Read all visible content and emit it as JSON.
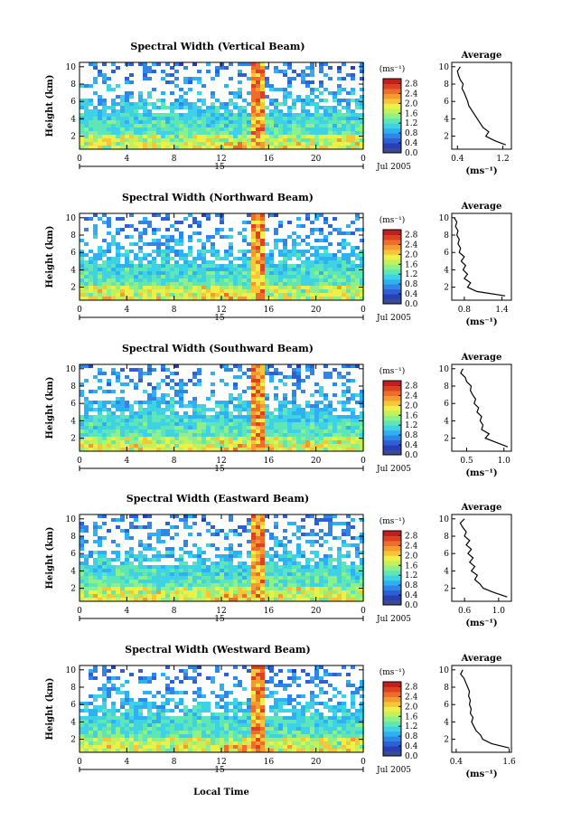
{
  "x_axis_label": "Local Time",
  "chart_data": [
    {
      "type": "heatmap",
      "title": "Spectral Width (Vertical Beam)",
      "ylabel": "Height (km)",
      "y_ticks": [
        "2",
        "4",
        "6",
        "8",
        "10"
      ],
      "ylim": [
        0.5,
        10.5
      ],
      "x_ticks": [
        "0",
        "4",
        "8",
        "12",
        "16",
        "20",
        "0"
      ],
      "xlim": [
        0,
        24
      ],
      "date_tick": "15",
      "date_label": "Jul 2005",
      "colorbar": {
        "unit": "(ms⁻¹)",
        "ticks": [
          "2.8",
          "2.4",
          "2.0",
          "1.6",
          "1.2",
          "0.8",
          "0.4",
          "0.0"
        ],
        "range": [
          0,
          3.0
        ],
        "colors": [
          "#3b4a96",
          "#2a3eb6",
          "#2f5fd4",
          "#2f86e6",
          "#2fb0f0",
          "#3fd2e4",
          "#5ee6b6",
          "#8ef08a",
          "#c4f05a",
          "#eef04a",
          "#f6c63a",
          "#f39a30",
          "#ec6e2a",
          "#dc4124",
          "#c11f1f"
        ]
      },
      "profile": {
        "title": "Average",
        "xlabel": "(ms⁻¹)",
        "x_ticks": [
          "0.4",
          "1.2"
        ],
        "xlim": [
          0.3,
          1.35
        ],
        "heights": [
          1.0,
          1.5,
          2.0,
          2.5,
          3.0,
          3.5,
          4.0,
          4.5,
          5.0,
          5.5,
          6.0,
          6.5,
          7.0,
          7.5,
          8.0,
          8.5,
          9.0,
          9.5,
          10.0
        ],
        "values": [
          1.25,
          1.05,
          0.9,
          0.95,
          0.85,
          0.8,
          0.75,
          0.7,
          0.65,
          0.6,
          0.58,
          0.55,
          0.52,
          0.48,
          0.5,
          0.45,
          0.42,
          0.4,
          0.45
        ]
      }
    },
    {
      "type": "heatmap",
      "title": "Spectral Width (Northward Beam)",
      "ylabel": "Height (km)",
      "y_ticks": [
        "2",
        "4",
        "6",
        "8",
        "10"
      ],
      "ylim": [
        0.5,
        10.5
      ],
      "x_ticks": [
        "0",
        "4",
        "8",
        "12",
        "16",
        "20",
        "0"
      ],
      "xlim": [
        0,
        24
      ],
      "date_tick": "15",
      "date_label": "Jul 2005",
      "colorbar": {
        "unit": "(ms⁻¹)",
        "ticks": [
          "2.8",
          "2.4",
          "2.0",
          "1.6",
          "1.2",
          "0.8",
          "0.4",
          "0.0"
        ],
        "range": [
          0,
          3.0
        ],
        "colors": [
          "#3b4a96",
          "#2a3eb6",
          "#2f5fd4",
          "#2f86e6",
          "#2fb0f0",
          "#3fd2e4",
          "#5ee6b6",
          "#8ef08a",
          "#c4f05a",
          "#eef04a",
          "#f6c63a",
          "#f39a30",
          "#ec6e2a",
          "#dc4124",
          "#c11f1f"
        ]
      },
      "profile": {
        "title": "Average",
        "xlabel": "(ms⁻¹)",
        "x_ticks": [
          "0.8",
          "1.4"
        ],
        "xlim": [
          0.6,
          1.55
        ],
        "heights": [
          1.0,
          1.5,
          2.0,
          2.5,
          3.0,
          3.5,
          4.0,
          4.5,
          5.0,
          5.5,
          6.0,
          6.5,
          7.0,
          7.5,
          8.0,
          8.5,
          9.0,
          9.5,
          10.0
        ],
        "values": [
          1.45,
          1.0,
          0.85,
          0.9,
          0.8,
          0.85,
          0.78,
          0.82,
          0.75,
          0.8,
          0.72,
          0.74,
          0.7,
          0.72,
          0.68,
          0.7,
          0.66,
          0.68,
          0.64
        ]
      }
    },
    {
      "type": "heatmap",
      "title": "Spectral Width (Southward Beam)",
      "ylabel": "Height (km)",
      "y_ticks": [
        "2",
        "4",
        "6",
        "8",
        "10"
      ],
      "ylim": [
        0.5,
        10.5
      ],
      "x_ticks": [
        "0",
        "4",
        "8",
        "12",
        "16",
        "20",
        "0"
      ],
      "xlim": [
        0,
        24
      ],
      "date_tick": "15",
      "date_label": "Jul 2005",
      "colorbar": {
        "unit": "(ms⁻¹)",
        "ticks": [
          "2.8",
          "2.4",
          "2.0",
          "1.6",
          "1.2",
          "0.8",
          "0.4",
          "0.0"
        ],
        "range": [
          0,
          3.0
        ],
        "colors": [
          "#3b4a96",
          "#2a3eb6",
          "#2f5fd4",
          "#2f86e6",
          "#2fb0f0",
          "#3fd2e4",
          "#5ee6b6",
          "#8ef08a",
          "#c4f05a",
          "#eef04a",
          "#f6c63a",
          "#f39a30",
          "#ec6e2a",
          "#dc4124",
          "#c11f1f"
        ]
      },
      "profile": {
        "title": "Average",
        "xlabel": "(ms⁻¹)",
        "x_ticks": [
          "0.5",
          "1.0"
        ],
        "xlim": [
          0.3,
          1.1
        ],
        "heights": [
          1.0,
          1.5,
          2.0,
          2.5,
          3.0,
          3.5,
          4.0,
          4.5,
          5.0,
          5.5,
          6.0,
          6.5,
          7.0,
          7.5,
          8.0,
          8.5,
          9.0,
          9.5,
          10.0
        ],
        "values": [
          1.05,
          0.9,
          0.75,
          0.8,
          0.7,
          0.72,
          0.68,
          0.7,
          0.64,
          0.66,
          0.6,
          0.62,
          0.58,
          0.55,
          0.56,
          0.5,
          0.48,
          0.42,
          0.45
        ]
      }
    },
    {
      "type": "heatmap",
      "title": "Spectral Width (Eastward Beam)",
      "ylabel": "Height (km)",
      "y_ticks": [
        "2",
        "4",
        "6",
        "8",
        "10"
      ],
      "ylim": [
        0.5,
        10.5
      ],
      "x_ticks": [
        "0",
        "4",
        "8",
        "12",
        "16",
        "20",
        "0"
      ],
      "xlim": [
        0,
        24
      ],
      "date_tick": "15",
      "date_label": "Jul 2005",
      "colorbar": {
        "unit": "(ms⁻¹)",
        "ticks": [
          "2.8",
          "2.4",
          "2.0",
          "1.6",
          "1.2",
          "0.8",
          "0.4",
          "0.0"
        ],
        "range": [
          0,
          3.0
        ],
        "colors": [
          "#3b4a96",
          "#2a3eb6",
          "#2f5fd4",
          "#2f86e6",
          "#2fb0f0",
          "#3fd2e4",
          "#5ee6b6",
          "#8ef08a",
          "#c4f05a",
          "#eef04a",
          "#f6c63a",
          "#f39a30",
          "#ec6e2a",
          "#dc4124",
          "#c11f1f"
        ]
      },
      "profile": {
        "title": "Average",
        "xlabel": "(ms⁻¹)",
        "x_ticks": [
          "0.6",
          "1.0"
        ],
        "xlim": [
          0.45,
          1.15
        ],
        "heights": [
          1.0,
          1.5,
          2.0,
          2.5,
          3.0,
          3.5,
          4.0,
          4.5,
          5.0,
          5.5,
          6.0,
          6.5,
          7.0,
          7.5,
          8.0,
          8.5,
          9.0,
          9.5,
          10.0
        ],
        "values": [
          1.1,
          0.95,
          0.82,
          0.78,
          0.72,
          0.75,
          0.68,
          0.72,
          0.66,
          0.7,
          0.64,
          0.68,
          0.62,
          0.66,
          0.6,
          0.62,
          0.58,
          0.55,
          0.6
        ]
      }
    },
    {
      "type": "heatmap",
      "title": "Spectral Width (Westward Beam)",
      "ylabel": "Height (km)",
      "y_ticks": [
        "2",
        "4",
        "6",
        "8",
        "10"
      ],
      "ylim": [
        0.5,
        10.5
      ],
      "x_ticks": [
        "0",
        "4",
        "8",
        "12",
        "16",
        "20",
        "0"
      ],
      "xlim": [
        0,
        24
      ],
      "date_tick": "15",
      "date_label": "Jul 2005",
      "colorbar": {
        "unit": "(ms⁻¹)",
        "ticks": [
          "2.8",
          "2.4",
          "2.0",
          "1.6",
          "1.2",
          "0.8",
          "0.4",
          "0.0"
        ],
        "range": [
          0,
          3.0
        ],
        "colors": [
          "#3b4a96",
          "#2a3eb6",
          "#2f5fd4",
          "#2f86e6",
          "#2fb0f0",
          "#3fd2e4",
          "#5ee6b6",
          "#8ef08a",
          "#c4f05a",
          "#eef04a",
          "#f6c63a",
          "#f39a30",
          "#ec6e2a",
          "#dc4124",
          "#c11f1f"
        ]
      },
      "profile": {
        "title": "Average",
        "xlabel": "(ms⁻¹)",
        "x_ticks": [
          "0.4",
          "1.6"
        ],
        "xlim": [
          0.3,
          1.65
        ],
        "heights": [
          1.0,
          1.5,
          2.0,
          2.5,
          3.0,
          3.5,
          4.0,
          4.5,
          5.0,
          5.5,
          6.0,
          6.5,
          7.0,
          7.5,
          8.0,
          8.5,
          9.0,
          9.5,
          10.0
        ],
        "values": [
          1.6,
          1.2,
          1.0,
          0.95,
          0.85,
          0.8,
          0.75,
          0.78,
          0.72,
          0.74,
          0.7,
          0.72,
          0.68,
          0.7,
          0.66,
          0.62,
          0.58,
          0.5,
          0.55
        ]
      }
    }
  ]
}
